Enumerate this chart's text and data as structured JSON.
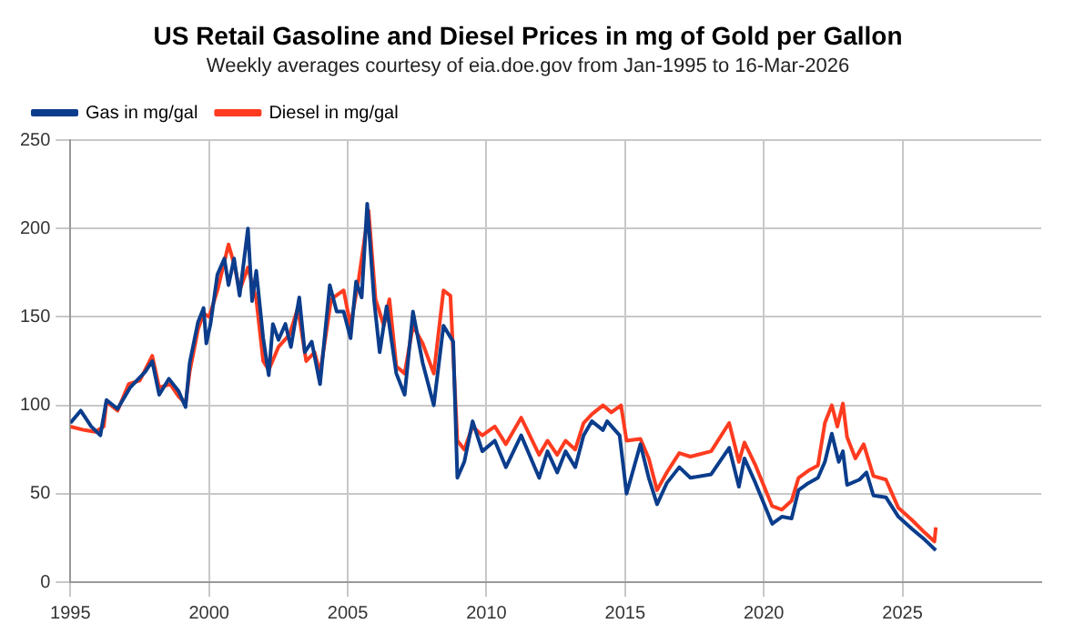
{
  "chart_data": {
    "type": "line",
    "title": "US Retail Gasoline and Diesel Prices in mg of Gold per Gallon",
    "subtitle": "Weekly averages courtesy of eia.doe.gov from Jan-1995 to 16-Mar-2026",
    "series": [
      {
        "name": "Gas in mg/gal",
        "color": "#0b3d8c",
        "x": [
          1995.0,
          1995.37,
          1995.75,
          1996.08,
          1996.3,
          1996.7,
          1997.15,
          1997.7,
          1997.95,
          1998.2,
          1998.55,
          1998.9,
          1999.15,
          1999.3,
          1999.6,
          1999.8,
          1999.9,
          2000.05,
          2000.3,
          2000.55,
          2000.7,
          2000.9,
          2001.1,
          2001.4,
          2001.55,
          2001.7,
          2001.95,
          2002.15,
          2002.3,
          2002.5,
          2002.75,
          2002.95,
          2003.25,
          2003.45,
          2003.7,
          2004.0,
          2004.35,
          2004.6,
          2004.85,
          2005.1,
          2005.3,
          2005.5,
          2005.7,
          2005.95,
          2006.15,
          2006.4,
          2006.75,
          2007.05,
          2007.35,
          2007.7,
          2008.1,
          2008.45,
          2008.8,
          2008.95,
          2009.2,
          2009.5,
          2009.85,
          2010.3,
          2010.7,
          2011.25,
          2011.9,
          2012.2,
          2012.55,
          2012.85,
          2013.2,
          2013.5,
          2013.8,
          2014.2,
          2014.35,
          2014.8,
          2015.05,
          2015.55,
          2015.85,
          2016.15,
          2016.5,
          2016.95,
          2017.35,
          2018.1,
          2018.75,
          2019.1,
          2019.3,
          2019.7,
          2020.3,
          2020.65,
          2021.0,
          2021.25,
          2021.6,
          2021.95,
          2022.2,
          2022.45,
          2022.7,
          2022.85,
          2023.0,
          2023.45,
          2023.7,
          2023.95,
          2024.4,
          2024.85,
          2025.35,
          2025.8,
          2026.2
        ],
        "values": [
          90,
          97,
          88,
          83,
          103,
          98,
          110,
          119,
          125,
          106,
          115,
          108,
          99,
          124,
          147,
          155,
          135,
          146,
          174,
          183,
          168,
          183,
          162,
          200,
          159,
          176,
          138,
          117,
          146,
          137,
          146,
          133,
          161,
          130,
          136,
          112,
          168,
          153,
          153,
          138,
          170,
          161,
          214,
          159,
          130,
          156,
          118,
          106,
          153,
          124,
          100,
          145,
          136,
          59,
          68,
          91,
          74,
          80,
          65,
          83,
          59,
          74,
          62,
          74,
          65,
          83,
          91,
          86,
          91,
          83,
          50,
          78,
          59,
          44,
          56,
          65,
          59,
          61,
          76,
          54,
          70,
          56,
          33,
          37,
          36,
          52,
          56,
          59,
          68,
          84,
          68,
          74,
          55,
          58,
          62,
          49,
          48,
          37,
          30,
          24,
          18
        ]
      },
      {
        "name": "Diesel in mg/gal",
        "color": "#ff3b1f",
        "x": [
          1995.0,
          1995.5,
          1995.9,
          1996.2,
          1996.3,
          1996.7,
          1997.1,
          1997.5,
          1997.95,
          1998.2,
          1998.6,
          1998.9,
          1999.15,
          1999.3,
          1999.6,
          1999.8,
          2000.0,
          2000.3,
          2000.7,
          2000.9,
          2001.1,
          2001.4,
          2001.7,
          2001.95,
          2002.15,
          2002.5,
          2002.9,
          2003.2,
          2003.5,
          2003.8,
          2004.0,
          2004.4,
          2004.85,
          2005.1,
          2005.4,
          2005.75,
          2006.0,
          2006.3,
          2006.5,
          2006.75,
          2007.05,
          2007.35,
          2007.7,
          2008.1,
          2008.45,
          2008.7,
          2008.95,
          2009.2,
          2009.5,
          2009.85,
          2010.3,
          2010.7,
          2011.25,
          2011.9,
          2012.2,
          2012.55,
          2012.85,
          2013.2,
          2013.5,
          2013.8,
          2014.2,
          2014.5,
          2014.85,
          2015.05,
          2015.55,
          2015.85,
          2016.15,
          2016.5,
          2016.95,
          2017.35,
          2018.1,
          2018.75,
          2019.1,
          2019.3,
          2019.7,
          2020.3,
          2020.65,
          2021.0,
          2021.25,
          2021.6,
          2021.95,
          2022.2,
          2022.45,
          2022.65,
          2022.85,
          2023.0,
          2023.3,
          2023.6,
          2023.95,
          2024.4,
          2024.85,
          2025.35,
          2025.8,
          2026.15,
          2026.2
        ],
        "values": [
          88,
          86,
          85,
          88,
          102,
          97,
          112,
          114,
          128,
          110,
          112,
          105,
          101,
          119,
          143,
          152,
          150,
          165,
          191,
          180,
          165,
          178,
          160,
          125,
          120,
          133,
          140,
          155,
          125,
          130,
          118,
          160,
          165,
          145,
          172,
          210,
          160,
          145,
          160,
          122,
          118,
          145,
          135,
          118,
          165,
          162,
          80,
          75,
          88,
          83,
          88,
          78,
          93,
          72,
          80,
          72,
          80,
          75,
          90,
          95,
          100,
          96,
          100,
          80,
          81,
          70,
          52,
          62,
          73,
          71,
          74,
          90,
          68,
          79,
          66,
          43,
          41,
          46,
          59,
          63,
          66,
          90,
          100,
          88,
          101,
          82,
          70,
          78,
          60,
          58,
          42,
          35,
          28,
          23,
          31
        ]
      }
    ],
    "xlim": [
      1995,
      2030
    ],
    "xticks": [
      1995,
      2000,
      2005,
      2010,
      2015,
      2020,
      2025
    ],
    "ylim": [
      0,
      250
    ],
    "yticks": [
      0,
      50,
      100,
      150,
      200,
      250
    ],
    "grid": true,
    "legend": "top left",
    "marker": "none",
    "line_style": "solid"
  }
}
